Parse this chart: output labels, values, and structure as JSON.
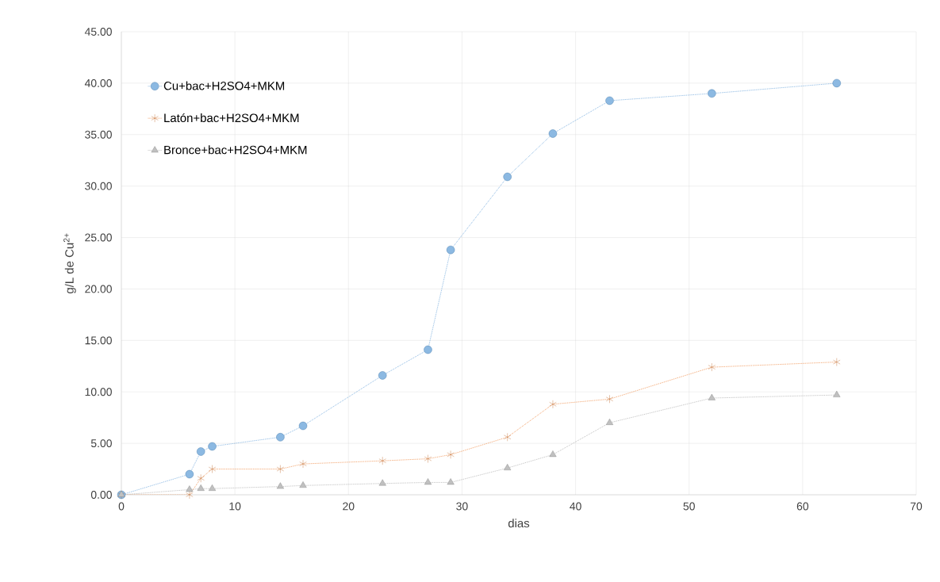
{
  "chart_data": {
    "type": "line",
    "xlabel": "dias",
    "ylabel": "g/L de Cu$^{2+}$",
    "xlim": [
      0,
      70
    ],
    "ylim": [
      0,
      45
    ],
    "xticks": [
      0,
      10,
      20,
      30,
      40,
      50,
      60,
      70
    ],
    "yticks": [
      {
        "value": 0,
        "label": "0.00"
      },
      {
        "value": 5,
        "label": "5.00"
      },
      {
        "value": 10,
        "label": "10.00"
      },
      {
        "value": 15,
        "label": "15.00"
      },
      {
        "value": 20,
        "label": "20.00"
      },
      {
        "value": 25,
        "label": "25.00"
      },
      {
        "value": 30,
        "label": "30.00"
      },
      {
        "value": 35,
        "label": "35.00"
      },
      {
        "value": 40,
        "label": "40.00"
      },
      {
        "value": 45,
        "label": "45.00"
      }
    ],
    "grid": true,
    "legend": "top left",
    "line_style": "dotted",
    "x": [
      0,
      6,
      7,
      8,
      14,
      16,
      23,
      27,
      29,
      34,
      38,
      43,
      52,
      63
    ],
    "series": [
      {
        "name": "Cu+bac+H2SO4+MKM",
        "color": "#5b9bd5",
        "marker": "circle",
        "values": [
          0,
          2.0,
          4.2,
          4.7,
          5.6,
          6.7,
          11.6,
          14.1,
          23.8,
          30.9,
          35.1,
          38.3,
          39.0,
          40.0
        ]
      },
      {
        "name": "Latón+bac+H2SO4+MKM",
        "color": "#ed7d31",
        "marker": "cross",
        "values": [
          0,
          0,
          1.6,
          2.5,
          2.5,
          3.0,
          3.3,
          3.5,
          3.9,
          5.6,
          8.8,
          9.3,
          12.4,
          12.9
        ]
      },
      {
        "name": "Bronce+bac+H2SO4+MKM",
        "color": "#a5a5a5",
        "marker": "triangle",
        "values": [
          0,
          0.5,
          0.6,
          0.6,
          0.8,
          0.9,
          1.1,
          1.2,
          1.2,
          2.6,
          3.9,
          7.0,
          9.4,
          9.7
        ]
      }
    ]
  }
}
